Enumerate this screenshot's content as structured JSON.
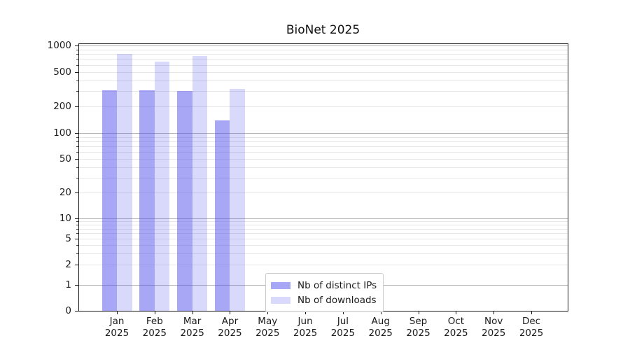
{
  "chart_data": {
    "type": "bar",
    "title": "BioNet 2025",
    "months": [
      "Jan",
      "Feb",
      "Mar",
      "Apr",
      "May",
      "Jun",
      "Jul",
      "Aug",
      "Sep",
      "Oct",
      "Nov",
      "Dec"
    ],
    "x_year_line": "2025",
    "y_tick_labels": [
      0,
      1,
      2,
      5,
      10,
      20,
      50,
      100,
      200,
      500,
      1000
    ],
    "ylim": [
      0,
      1000
    ],
    "yscale": "symlog",
    "grid": "both",
    "legend_position": "lower center",
    "series": [
      {
        "name": "Nb of distinct IPs",
        "key": "distinct-ips",
        "color": "rgba(80,80,235,0.5)",
        "values": [
          310,
          310,
          300,
          140,
          null,
          null,
          null,
          null,
          null,
          null,
          null,
          null
        ]
      },
      {
        "name": "Nb of downloads",
        "key": "downloads",
        "color": "rgba(80,80,235,0.22)",
        "values": [
          800,
          660,
          760,
          320,
          null,
          null,
          null,
          null,
          null,
          null,
          null,
          null
        ]
      }
    ]
  },
  "colors": {
    "axis": "#1a1a1a",
    "major_grid": "#b0b0b0",
    "minor_grid": "#e6e6e6",
    "text": "#1a1a1a",
    "legend_border": "#cccccc",
    "background": "#ffffff"
  }
}
